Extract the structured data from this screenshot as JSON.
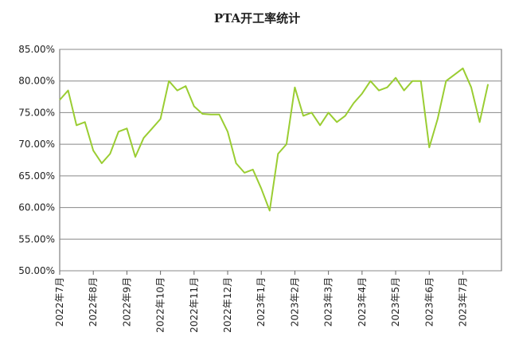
{
  "chart_data": {
    "type": "line",
    "title": "PTA开工率统计",
    "categories": [
      "2022年7月",
      null,
      null,
      null,
      "2022年8月",
      null,
      null,
      null,
      "2022年9月",
      null,
      null,
      null,
      "2022年10月",
      null,
      null,
      null,
      "2022年11月",
      null,
      null,
      null,
      "2022年12月",
      null,
      null,
      null,
      "2023年1月",
      null,
      null,
      null,
      "2023年2月",
      null,
      null,
      null,
      "2023年3月",
      null,
      null,
      null,
      "2023年4月",
      null,
      null,
      null,
      "2023年5月",
      null,
      null,
      null,
      "2023年6月",
      null,
      null,
      null,
      "2023年7月",
      null,
      null,
      null
    ],
    "series": [
      {
        "name": "PTA开工率",
        "color": "#9acd32",
        "values": [
          77,
          78.5,
          73,
          73.5,
          69,
          67,
          68.5,
          72,
          72.5,
          68,
          71,
          72.5,
          74,
          80,
          78.5,
          79.2,
          76,
          74.8,
          74.7,
          74.7,
          72,
          67,
          65.5,
          66,
          63,
          59.5,
          68.5,
          70,
          79,
          74.5,
          75,
          73,
          75,
          73.5,
          74.5,
          76.5,
          78,
          80,
          78.5,
          79,
          80.5,
          78.5,
          80,
          80,
          69.5,
          74,
          80,
          81,
          82,
          79,
          73.5,
          79.5
        ]
      }
    ],
    "ylim": [
      50,
      85
    ],
    "yticks": [
      {
        "value": 50,
        "label": "50.00%"
      },
      {
        "value": 55,
        "label": "55.00%"
      },
      {
        "value": 60,
        "label": "60.00%"
      },
      {
        "value": 65,
        "label": "65.00%"
      },
      {
        "value": 70,
        "label": "70.00%"
      },
      {
        "value": 75,
        "label": "75.00%"
      },
      {
        "value": 80,
        "label": "80.00%"
      },
      {
        "value": 85,
        "label": "85.00%"
      }
    ],
    "grid": true
  }
}
